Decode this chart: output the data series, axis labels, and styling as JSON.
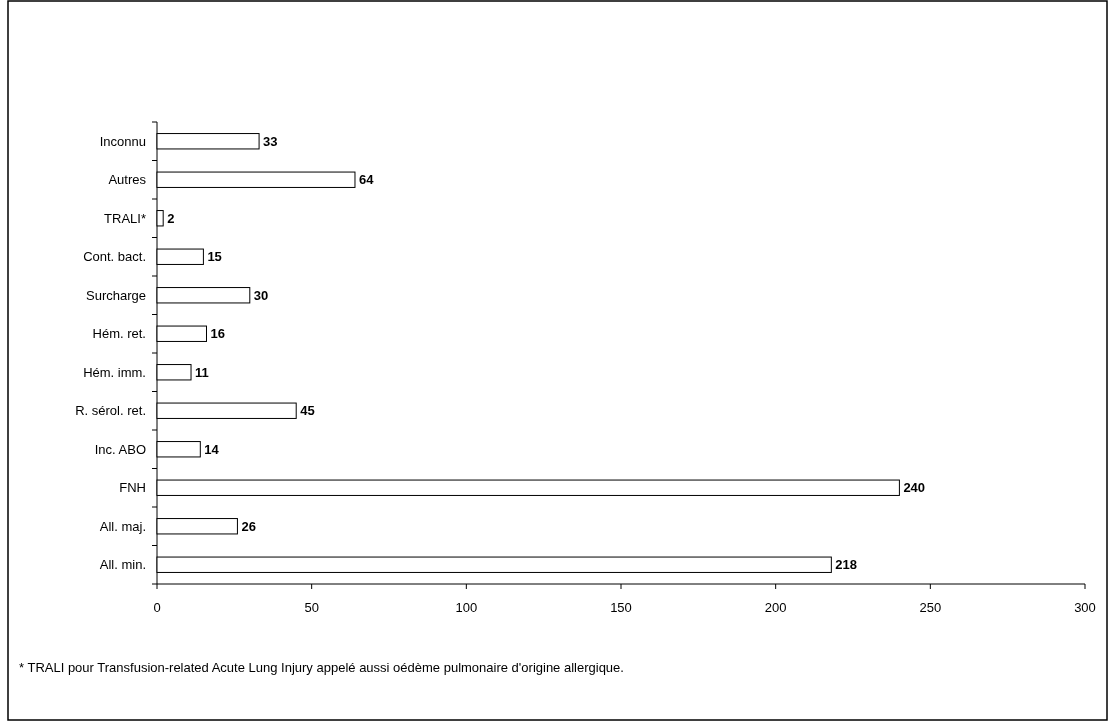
{
  "chart_data": {
    "type": "bar",
    "orientation": "horizontal",
    "categories": [
      "Inconnu",
      "Autres",
      "TRALI*",
      "Cont. bact.",
      "Surcharge",
      "Hém. ret.",
      "Hém. imm.",
      "R. sérol. ret.",
      "Inc. ABO",
      "FNH",
      "All. maj.",
      "All. min."
    ],
    "values": [
      33,
      64,
      2,
      15,
      30,
      16,
      11,
      45,
      14,
      240,
      26,
      218
    ],
    "color": "#ffffff",
    "xlim": [
      0,
      300
    ],
    "xticks": [
      0,
      50,
      100,
      150,
      200,
      250,
      300
    ],
    "data_labels": true,
    "grid": false,
    "annotations": [
      "* TRALI  pour Transfusion-related Acute Lung Injury appelé aussi oédème pulmonaire d'origine allergique."
    ]
  }
}
